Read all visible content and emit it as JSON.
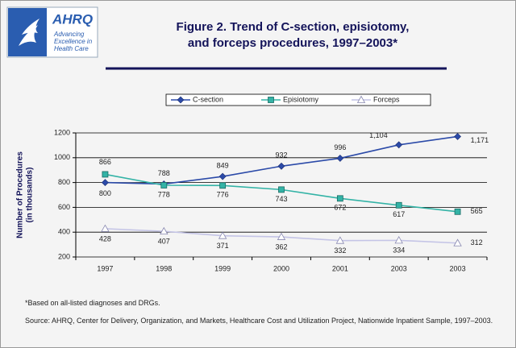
{
  "logo": {
    "name": "AHRQ",
    "tagline": [
      "Advancing",
      "Excellence in",
      "Health Care"
    ]
  },
  "chart_data": {
    "type": "line",
    "title": [
      "Figure 2. Trend of C-section, episiotomy,",
      "and forceps procedures, 1997–2003*"
    ],
    "y_label": [
      "Number of Procedures",
      "(in thousands)"
    ],
    "categories": [
      "1997",
      "1998",
      "1999",
      "2000",
      "2001",
      "2003",
      "2003"
    ],
    "series": [
      {
        "name": "C-section",
        "color": "#2b4aa8",
        "marker": "diamond",
        "values": [
          800,
          788,
          849,
          932,
          996,
          1104,
          1171
        ],
        "value_labels": [
          "800",
          "788",
          "849",
          "932",
          "996",
          "1,104",
          "1,171"
        ]
      },
      {
        "name": "Episiotomy",
        "color": "#33b3a6",
        "marker": "square",
        "values": [
          866,
          778,
          776,
          743,
          672,
          617,
          565
        ]
      },
      {
        "name": "Forceps",
        "color": "#c4c4e6",
        "marker": "triangle",
        "values": [
          428,
          407,
          371,
          362,
          332,
          334,
          312
        ]
      }
    ],
    "ylim": [
      200,
      1200
    ],
    "yticks": [
      200,
      400,
      600,
      800,
      1000,
      1200
    ],
    "grid": true,
    "legend": "top",
    "footnote": "*Based on all-listed diagnoses and DRGs.",
    "source": "Source: AHRQ, Center for Delivery, Organization, and Markets, Healthcare Cost and Utilization Project, Nationwide Inpatient Sample, 1997–2003."
  }
}
